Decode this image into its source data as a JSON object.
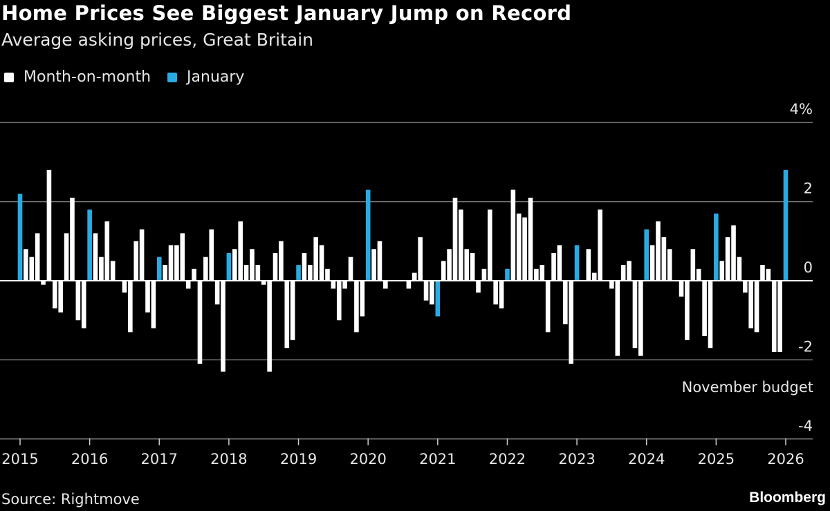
{
  "chart_data": {
    "type": "bar",
    "title": "Home Prices See Biggest January Jump on Record",
    "subtitle": "Average asking prices, Great Britain",
    "start": "2015-01",
    "frequency": "monthly",
    "series": [
      {
        "name": "Month-on-month",
        "color": "#ffffff"
      },
      {
        "name": "January",
        "color": "#29abe2"
      }
    ],
    "values": [
      2.2,
      0.8,
      0.6,
      1.2,
      -0.1,
      2.8,
      -0.7,
      -0.8,
      1.2,
      2.1,
      -1.0,
      -1.2,
      1.8,
      1.2,
      0.6,
      1.5,
      0.5,
      0,
      -0.3,
      -1.3,
      1.0,
      1.3,
      -0.8,
      -1.2,
      0.6,
      0.4,
      0.9,
      0.9,
      1.2,
      -0.2,
      0.3,
      -2.1,
      0.6,
      1.3,
      -0.6,
      -2.3,
      0.7,
      0.8,
      1.5,
      0.4,
      0.8,
      0.4,
      -0.1,
      -2.3,
      0.7,
      1.0,
      -1.7,
      -1.5,
      0.4,
      0.7,
      0.4,
      1.1,
      0.9,
      0.3,
      -0.2,
      -1.0,
      -0.2,
      0.6,
      -1.3,
      -0.9,
      2.3,
      0.8,
      1.0,
      -0.2,
      0,
      0,
      0,
      -0.2,
      0.2,
      1.1,
      -0.5,
      -0.6,
      -0.9,
      0.5,
      0.8,
      2.1,
      1.8,
      0.8,
      0.7,
      -0.3,
      0.3,
      1.8,
      -0.6,
      -0.7,
      0.3,
      2.3,
      1.7,
      1.6,
      2.1,
      0.3,
      0.4,
      -1.3,
      0.7,
      0.9,
      -1.1,
      -2.1,
      0.9,
      0,
      0.8,
      0.2,
      1.8,
      0,
      -0.2,
      -1.9,
      0.4,
      0.5,
      -1.7,
      -1.9,
      1.3,
      0.9,
      1.5,
      1.1,
      0.8,
      0,
      -0.4,
      -1.5,
      0.8,
      0.3,
      -1.4,
      -1.7,
      1.7,
      0.5,
      1.1,
      1.4,
      0.6,
      -0.3,
      -1.2,
      -1.3,
      0.4,
      0.3,
      -1.8,
      -1.8,
      2.8
    ],
    "x_tick_labels": [
      "2015",
      "2016",
      "2017",
      "2018",
      "2019",
      "2020",
      "2021",
      "2022",
      "2023",
      "2024",
      "2025",
      "2026"
    ],
    "y_ticks": [
      {
        "value": 4,
        "label": "4%"
      },
      {
        "value": 2,
        "label": "2"
      },
      {
        "value": 0,
        "label": "0"
      },
      {
        "value": -2,
        "label": "-2"
      },
      {
        "value": -4,
        "label": "-4"
      }
    ],
    "ylim": [
      -4,
      4
    ],
    "grid": true,
    "legend_position": "top-left",
    "annotations": [
      {
        "text": "November budget",
        "x": "2025-11",
        "y": -2.6
      }
    ]
  },
  "legend": [
    "Month-on-month",
    "January"
  ],
  "footer": {
    "source": "Source: Rightmove",
    "brand": "Bloomberg"
  }
}
